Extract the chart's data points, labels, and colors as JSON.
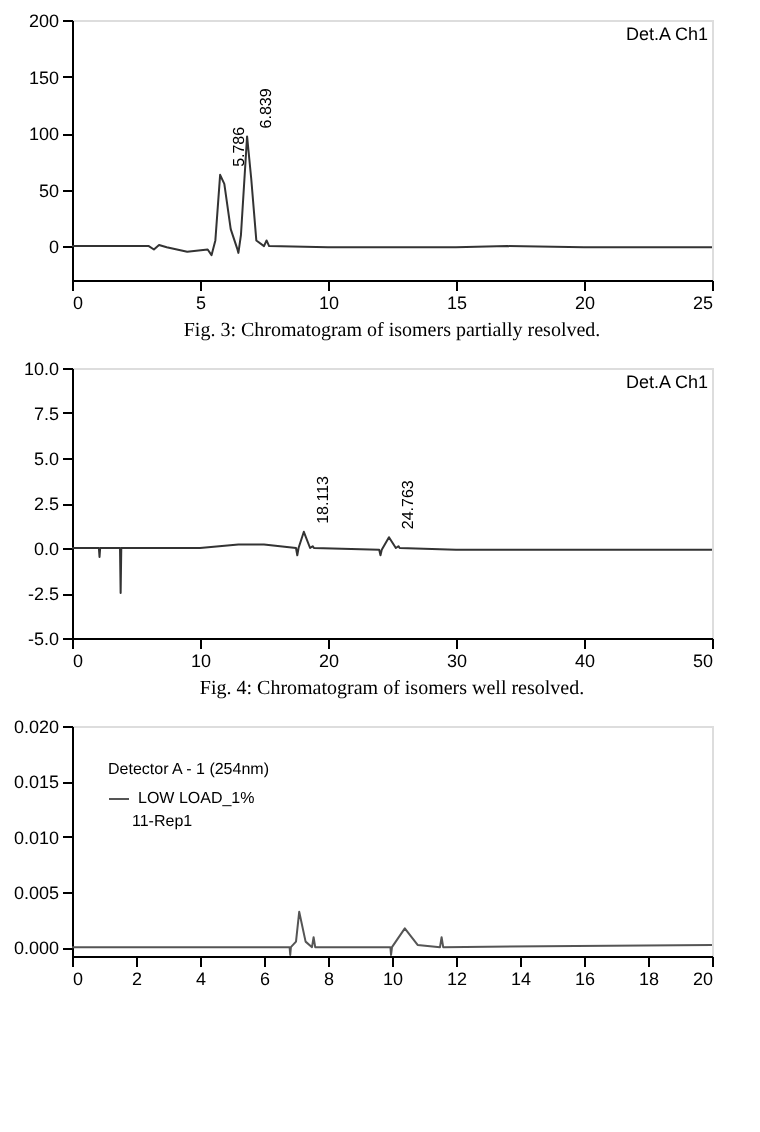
{
  "chart_data": [
    {
      "type": "line",
      "xlim": [
        0,
        25
      ],
      "xticks": [
        0,
        5,
        10,
        15,
        20,
        25
      ],
      "ylim": [
        -30,
        200
      ],
      "yticks": [
        0,
        50,
        100,
        150,
        200
      ],
      "grid": false,
      "legend": false,
      "line_style": "solid",
      "marker": "none",
      "series": [
        {
          "color": "#333333",
          "x": [
            0,
            3,
            3.2,
            3.4,
            3.7,
            4.5,
            5.3,
            5.45,
            5.6,
            5.786,
            5.95,
            6.2,
            6.45,
            6.5,
            6.6,
            6.839,
            7.0,
            7.2,
            7.5,
            7.6,
            7.7,
            10,
            15,
            17,
            20,
            25
          ],
          "values": [
            0,
            0,
            -3,
            1,
            -1,
            -5,
            -3,
            -8,
            5,
            63,
            55,
            15,
            -2,
            -6,
            10,
            97,
            60,
            5,
            0,
            5,
            0,
            -1,
            -1,
            0,
            -1,
            -1
          ]
        }
      ],
      "annotations": [
        {
          "text": "5.786",
          "x": 5.786,
          "y": 63
        },
        {
          "text": "6.839",
          "x": 6.839,
          "y": 97
        },
        "Det.A Ch1",
        "Fig. 3: Chromatogram of isomers partially resolved."
      ]
    },
    {
      "type": "line",
      "xlim": [
        0,
        50
      ],
      "xticks": [
        0,
        10,
        20,
        30,
        40,
        50
      ],
      "ylim": [
        -5,
        10
      ],
      "yticks": [
        {
          "value": -5,
          "label": "-5.0"
        },
        {
          "value": -2.5,
          "label": "-2.5"
        },
        {
          "value": 0,
          "label": "0.0"
        },
        {
          "value": 2.5,
          "label": "2.5"
        },
        {
          "value": 5,
          "label": "5.0"
        },
        {
          "value": 7.5,
          "label": "7.5"
        },
        {
          "value": 10,
          "label": "10.0"
        }
      ],
      "grid": false,
      "legend": false,
      "line_style": "solid",
      "marker": "none",
      "series": [
        {
          "color": "#333333",
          "x": [
            0,
            2.1,
            2.15,
            2.2,
            3.75,
            3.8,
            3.85,
            10,
            13,
            15,
            17.5,
            17.6,
            17.7,
            18.113,
            18.6,
            18.8,
            18.9,
            24,
            24.1,
            24.2,
            24.763,
            25.3,
            25.5,
            25.6,
            30,
            40,
            45,
            50
          ],
          "values": [
            0,
            0,
            -0.5,
            0,
            0,
            -2.5,
            0,
            0,
            0.2,
            0.2,
            0,
            -0.4,
            0,
            0.9,
            0,
            0.1,
            0,
            -0.1,
            -0.4,
            -0.1,
            0.6,
            0,
            0.1,
            0,
            -0.1,
            -0.1,
            -0.1,
            -0.1
          ]
        }
      ],
      "annotations": [
        {
          "text": "18.113",
          "x": 18.113,
          "y": 0.9
        },
        {
          "text": "24.763",
          "x": 24.763,
          "y": 0.6
        },
        "Det.A Ch1",
        "Fig. 4: Chromatogram of isomers well resolved."
      ]
    },
    {
      "type": "line",
      "xlim": [
        0,
        20
      ],
      "xticks": [
        0,
        2,
        4,
        6,
        8,
        10,
        12,
        14,
        16,
        18,
        20
      ],
      "ylim": [
        -0.0008,
        0.02
      ],
      "yticks": [
        {
          "value": 0,
          "label": "0.000"
        },
        {
          "value": 0.005,
          "label": "0.005"
        },
        {
          "value": 0.01,
          "label": "0.010"
        },
        {
          "value": 0.015,
          "label": "0.015"
        },
        {
          "value": 0.02,
          "label": "0.020"
        }
      ],
      "grid": false,
      "legend": "top left",
      "legend_title": "Detector A - 1 (254nm)",
      "line_style": "solid",
      "marker": "none",
      "series": [
        {
          "name": "LOW LOAD_1%",
          "color": "#555555",
          "x": [
            0,
            6.8,
            6.82,
            6.84,
            7.0,
            7.1,
            7.3,
            7.5,
            7.55,
            7.6,
            9.95,
            9.97,
            10,
            10.4,
            10.8,
            11.5,
            11.55,
            11.6,
            20
          ],
          "values": [
            0,
            0,
            -0.0007,
            0,
            0.0005,
            0.0032,
            0.0005,
            0,
            0.0009,
            0,
            0,
            -0.0007,
            0,
            0.0017,
            0.0002,
            0,
            0.0009,
            0,
            0.0002
          ]
        }
      ],
      "annotations": [
        "11-Rep1"
      ]
    }
  ]
}
